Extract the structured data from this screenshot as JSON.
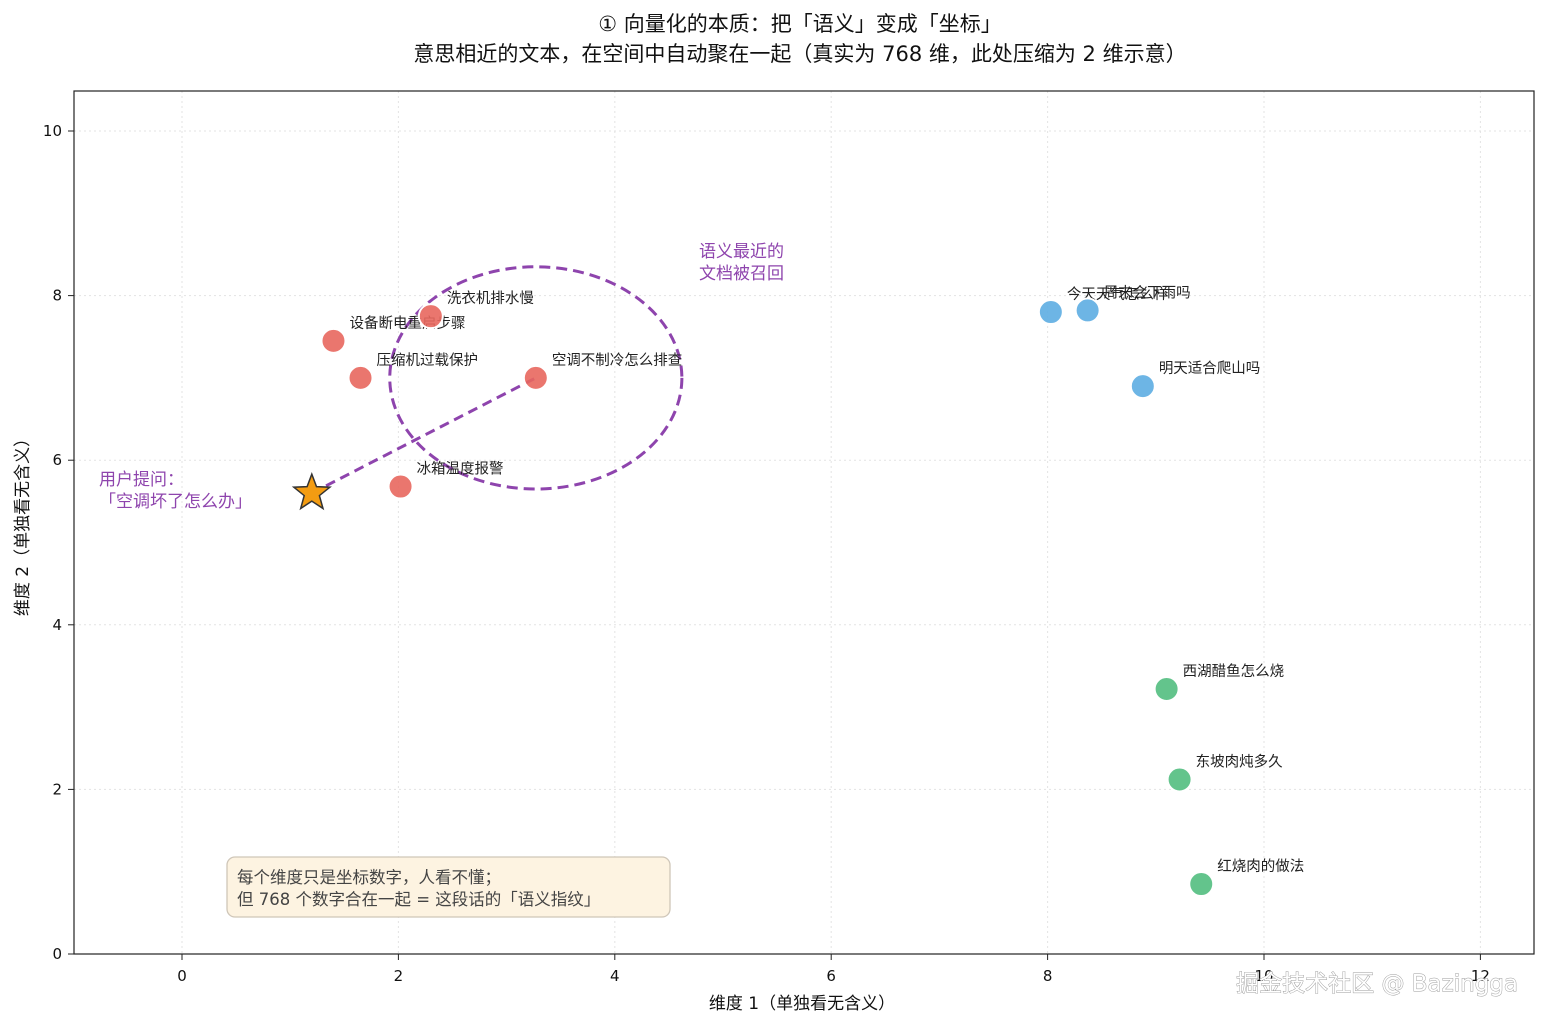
{
  "chart_data": {
    "type": "scatter",
    "title": "① 向量化的本质：把「语义」变成「坐标」",
    "subtitle": "意思相近的文本，在空间中自动聚在一起（真实为 768 维，此处压缩为 2 维示意）",
    "xlabel": "维度 1（单独看无含义）",
    "ylabel": "维度 2（单独看无含义）",
    "xlim": [
      -1,
      12.5
    ],
    "ylim": [
      0,
      10.5
    ],
    "xticks": [
      0,
      2,
      4,
      6,
      8,
      10,
      12
    ],
    "yticks": [
      0,
      2,
      4,
      6,
      8,
      10
    ],
    "grid": true,
    "series": [
      {
        "color": "#e8675e",
        "points": [
          {
            "x": 1.4,
            "y": 7.45,
            "label": "设备断电重启步骤"
          },
          {
            "x": 2.3,
            "y": 7.75,
            "label": "洗衣机排水慢"
          },
          {
            "x": 1.65,
            "y": 7.0,
            "label": "压缩机过载保护"
          },
          {
            "x": 3.27,
            "y": 7.0,
            "label": "空调不制冷怎么排查"
          },
          {
            "x": 2.02,
            "y": 5.68,
            "label": "冰箱温度报警"
          }
        ]
      },
      {
        "color": "#5dade2",
        "points": [
          {
            "x": 8.03,
            "y": 7.8,
            "label": "今天天气怎么样"
          },
          {
            "x": 8.37,
            "y": 7.82,
            "label": "周末会下雨吗"
          },
          {
            "x": 8.88,
            "y": 6.9,
            "label": "明天适合爬山吗"
          }
        ]
      },
      {
        "color": "#52be80",
        "points": [
          {
            "x": 9.1,
            "y": 3.22,
            "label": "西湖醋鱼怎么烧"
          },
          {
            "x": 9.22,
            "y": 2.12,
            "label": "东坡肉炖多久"
          },
          {
            "x": 9.42,
            "y": 0.85,
            "label": "红烧肉的做法"
          }
        ]
      }
    ],
    "query": {
      "x": 1.2,
      "y": 5.6,
      "color": "#f39c12",
      "label_line1": "用户提问：",
      "label_line2": "「空调坏了怎么办」"
    },
    "retrieval_annotation": {
      "center_x": 3.27,
      "center_y": 7.0,
      "radius_x": 1.35,
      "radius_y": 1.35,
      "color": "#8e44ad",
      "label_line1": "语义最近的",
      "label_line2": "文档被召回"
    },
    "note": {
      "line1": "每个维度只是坐标数字，人看不懂；",
      "line2": "但 768 个数字合在一起 = 这段话的「语义指纹」"
    }
  },
  "watermark": "掘金技术社区 @ Bazingga"
}
